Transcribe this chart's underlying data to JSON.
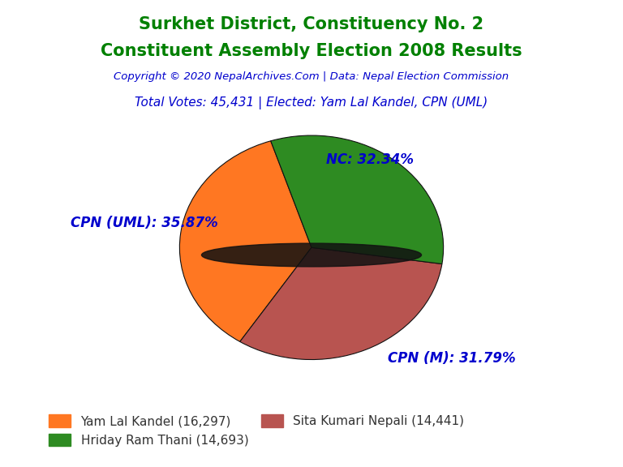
{
  "title_line1": "Surkhet District, Constituency No. 2",
  "title_line2": "Constituent Assembly Election 2008 Results",
  "title_color": "#008000",
  "copyright_text": "Copyright © 2020 NepalArchives.Com | Data: Nepal Election Commission",
  "copyright_color": "#0000CD",
  "subtitle_text": "Total Votes: 45,431 | Elected: Yam Lal Kandel, CPN (UML)",
  "subtitle_color": "#0000CD",
  "slices": [
    {
      "label": "CPN (UML)",
      "value": 16297,
      "pct": 35.87,
      "color": "#FF7722"
    },
    {
      "label": "CPN (M)",
      "value": 14441,
      "pct": 31.79,
      "color": "#B85450"
    },
    {
      "label": "NC",
      "value": 14693,
      "pct": 32.34,
      "color": "#2E8B22"
    }
  ],
  "legend_entries": [
    {
      "label": "Yam Lal Kandel (16,297)",
      "color": "#FF7722"
    },
    {
      "label": "Hriday Ram Thani (14,693)",
      "color": "#2E8B22"
    },
    {
      "label": "Sita Kumari Nepali (14,441)",
      "color": "#B85450"
    }
  ],
  "label_color": "#0000CD",
  "label_fontsize": 12,
  "background_color": "#FFFFFF",
  "startangle": 108
}
